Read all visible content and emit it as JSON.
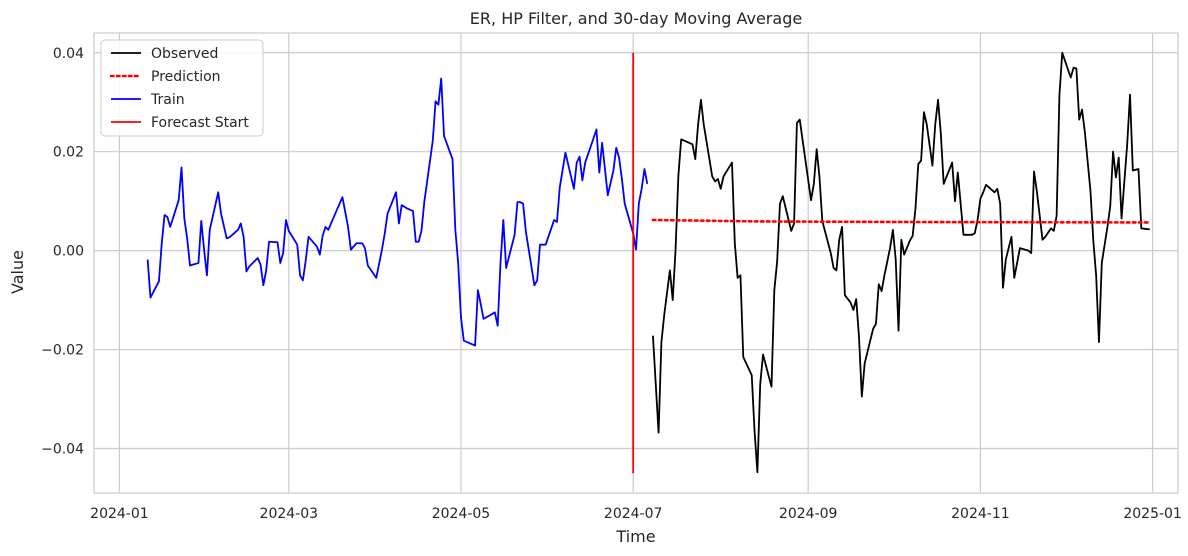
{
  "chart_data": {
    "type": "line",
    "title": "ER, HP Filter, and 30-day Moving Average",
    "xlabel": "Time",
    "ylabel": "Value",
    "x_type": "date",
    "xlim": [
      "2023-12-23",
      "2025-01-10"
    ],
    "ylim": [
      -0.049,
      0.044
    ],
    "x_ticks": [
      "2024-01-01",
      "2024-03-01",
      "2024-05-01",
      "2024-07-01",
      "2024-09-01",
      "2024-11-01",
      "2025-01-01"
    ],
    "x_tick_labels": [
      "2024-01",
      "2024-03",
      "2024-05",
      "2024-07",
      "2024-09",
      "2024-11",
      "2025-01"
    ],
    "y_ticks": [
      -0.04,
      -0.02,
      0.0,
      0.02,
      0.04
    ],
    "y_tick_labels": [
      "−0.04",
      "−0.02",
      "0.00",
      "0.02",
      "0.04"
    ],
    "grid": true,
    "legend_position": "top-left",
    "series": [
      {
        "name": "Train",
        "color": "#0000ff",
        "style": "solid",
        "points": [
          [
            "2024-01-11",
            -0.0018
          ],
          [
            "2024-01-12",
            -0.0095
          ],
          [
            "2024-01-15",
            -0.0062
          ],
          [
            "2024-01-16",
            0.0015
          ],
          [
            "2024-01-17",
            0.0072
          ],
          [
            "2024-01-18",
            0.0068
          ],
          [
            "2024-01-19",
            0.0048
          ],
          [
            "2024-01-22",
            0.0102
          ],
          [
            "2024-01-23",
            0.0168
          ],
          [
            "2024-01-24",
            0.0065
          ],
          [
            "2024-01-25",
            0.0025
          ],
          [
            "2024-01-26",
            -0.003
          ],
          [
            "2024-01-29",
            -0.0025
          ],
          [
            "2024-01-30",
            0.006
          ],
          [
            "2024-01-31",
            0.0002
          ],
          [
            "2024-02-01",
            -0.005
          ],
          [
            "2024-02-02",
            0.0042
          ],
          [
            "2024-02-05",
            0.0118
          ],
          [
            "2024-02-06",
            0.0075
          ],
          [
            "2024-02-07",
            0.005
          ],
          [
            "2024-02-08",
            0.0025
          ],
          [
            "2024-02-09",
            0.0027
          ],
          [
            "2024-02-12",
            0.0042
          ],
          [
            "2024-02-13",
            0.0055
          ],
          [
            "2024-02-14",
            0.0028
          ],
          [
            "2024-02-15",
            -0.0042
          ],
          [
            "2024-02-16",
            -0.0032
          ],
          [
            "2024-02-19",
            -0.0015
          ],
          [
            "2024-02-20",
            -0.0028
          ],
          [
            "2024-02-21",
            -0.007
          ],
          [
            "2024-02-22",
            -0.004
          ],
          [
            "2024-02-23",
            0.0018
          ],
          [
            "2024-02-26",
            0.0017
          ],
          [
            "2024-02-27",
            -0.0025
          ],
          [
            "2024-02-28",
            -0.0005
          ],
          [
            "2024-02-29",
            0.0062
          ],
          [
            "2024-03-01",
            0.004
          ],
          [
            "2024-03-04",
            0.0012
          ],
          [
            "2024-03-05",
            -0.005
          ],
          [
            "2024-03-06",
            -0.006
          ],
          [
            "2024-03-07",
            -0.002
          ],
          [
            "2024-03-08",
            0.0028
          ],
          [
            "2024-03-11",
            0.0008
          ],
          [
            "2024-03-12",
            -0.0008
          ],
          [
            "2024-03-13",
            0.003
          ],
          [
            "2024-03-14",
            0.0048
          ],
          [
            "2024-03-15",
            0.0042
          ],
          [
            "2024-03-18",
            0.0082
          ],
          [
            "2024-03-19",
            0.0095
          ],
          [
            "2024-03-20",
            0.0108
          ],
          [
            "2024-03-21",
            0.0078
          ],
          [
            "2024-03-22",
            0.0048
          ],
          [
            "2024-03-23",
            0.0002
          ],
          [
            "2024-03-25",
            0.0015
          ],
          [
            "2024-03-27",
            0.0015
          ],
          [
            "2024-03-28",
            0.0005
          ],
          [
            "2024-03-29",
            -0.003
          ],
          [
            "2024-04-01",
            -0.0055
          ],
          [
            "2024-04-03",
            0.0002
          ],
          [
            "2024-04-04",
            0.0035
          ],
          [
            "2024-04-05",
            0.0075
          ],
          [
            "2024-04-08",
            0.0118
          ],
          [
            "2024-04-09",
            0.0055
          ],
          [
            "2024-04-10",
            0.0092
          ],
          [
            "2024-04-12",
            0.0085
          ],
          [
            "2024-04-14",
            0.008
          ],
          [
            "2024-04-15",
            0.0018
          ],
          [
            "2024-04-16",
            0.0018
          ],
          [
            "2024-04-17",
            0.004
          ],
          [
            "2024-04-18",
            0.0098
          ],
          [
            "2024-04-21",
            0.0222
          ],
          [
            "2024-04-22",
            0.0302
          ],
          [
            "2024-04-23",
            0.0295
          ],
          [
            "2024-04-24",
            0.0348
          ],
          [
            "2024-04-25",
            0.0232
          ],
          [
            "2024-04-28",
            0.0185
          ],
          [
            "2024-04-29",
            0.0042
          ],
          [
            "2024-04-30",
            -0.0025
          ],
          [
            "2024-05-01",
            -0.0135
          ],
          [
            "2024-05-02",
            -0.0182
          ],
          [
            "2024-05-06",
            -0.0192
          ],
          [
            "2024-05-07",
            -0.008
          ],
          [
            "2024-05-08",
            -0.0108
          ],
          [
            "2024-05-09",
            -0.0138
          ],
          [
            "2024-05-13",
            -0.0125
          ],
          [
            "2024-05-14",
            -0.0152
          ],
          [
            "2024-05-15",
            -0.0025
          ],
          [
            "2024-05-16",
            0.0062
          ],
          [
            "2024-05-17",
            -0.0035
          ],
          [
            "2024-05-20",
            0.0032
          ],
          [
            "2024-05-21",
            0.0098
          ],
          [
            "2024-05-22",
            0.0098
          ],
          [
            "2024-05-23",
            0.0095
          ],
          [
            "2024-05-24",
            0.0038
          ],
          [
            "2024-05-27",
            -0.007
          ],
          [
            "2024-05-28",
            -0.006
          ],
          [
            "2024-05-29",
            0.0012
          ],
          [
            "2024-05-31",
            0.0012
          ],
          [
            "2024-06-03",
            0.0062
          ],
          [
            "2024-06-04",
            0.0058
          ],
          [
            "2024-06-05",
            0.0128
          ],
          [
            "2024-06-07",
            0.0198
          ],
          [
            "2024-06-10",
            0.0125
          ],
          [
            "2024-06-11",
            0.0178
          ],
          [
            "2024-06-12",
            0.019
          ],
          [
            "2024-06-13",
            0.0142
          ],
          [
            "2024-06-14",
            0.0178
          ],
          [
            "2024-06-17",
            0.0228
          ],
          [
            "2024-06-18",
            0.0245
          ],
          [
            "2024-06-19",
            0.0158
          ],
          [
            "2024-06-20",
            0.0218
          ],
          [
            "2024-06-21",
            0.0165
          ],
          [
            "2024-06-22",
            0.0112
          ],
          [
            "2024-06-24",
            0.0162
          ],
          [
            "2024-06-25",
            0.0208
          ],
          [
            "2024-06-26",
            0.0188
          ],
          [
            "2024-06-27",
            0.0145
          ],
          [
            "2024-06-28",
            0.0095
          ],
          [
            "2024-07-01",
            0.0035
          ],
          [
            "2024-07-02",
            0.0002
          ],
          [
            "2024-07-03",
            0.0095
          ],
          [
            "2024-07-04",
            0.0125
          ],
          [
            "2024-07-05",
            0.0165
          ],
          [
            "2024-07-06",
            0.0135
          ]
        ]
      },
      {
        "name": "Observed",
        "color": "#000000",
        "style": "solid",
        "points": [
          [
            "2024-07-08",
            -0.0172
          ],
          [
            "2024-07-10",
            -0.0368
          ],
          [
            "2024-07-11",
            -0.0185
          ],
          [
            "2024-07-12",
            -0.013
          ],
          [
            "2024-07-14",
            -0.004
          ],
          [
            "2024-07-15",
            -0.01
          ],
          [
            "2024-07-16",
            0.0
          ],
          [
            "2024-07-17",
            0.015
          ],
          [
            "2024-07-18",
            0.0225
          ],
          [
            "2024-07-22",
            0.0215
          ],
          [
            "2024-07-23",
            0.0185
          ],
          [
            "2024-07-24",
            0.0255
          ],
          [
            "2024-07-25",
            0.0305
          ],
          [
            "2024-07-26",
            0.0255
          ],
          [
            "2024-07-29",
            0.015
          ],
          [
            "2024-07-30",
            0.014
          ],
          [
            "2024-07-31",
            0.0145
          ],
          [
            "2024-08-01",
            0.0125
          ],
          [
            "2024-08-02",
            0.015
          ],
          [
            "2024-08-05",
            0.0178
          ],
          [
            "2024-08-06",
            0.0015
          ],
          [
            "2024-08-07",
            -0.0055
          ],
          [
            "2024-08-08",
            -0.005
          ],
          [
            "2024-08-09",
            -0.0215
          ],
          [
            "2024-08-12",
            -0.0252
          ],
          [
            "2024-08-13",
            -0.0365
          ],
          [
            "2024-08-14",
            -0.0448
          ],
          [
            "2024-08-15",
            -0.027
          ],
          [
            "2024-08-16",
            -0.021
          ],
          [
            "2024-08-19",
            -0.0275
          ],
          [
            "2024-08-20",
            -0.008
          ],
          [
            "2024-08-21",
            -0.0022
          ],
          [
            "2024-08-22",
            0.0095
          ],
          [
            "2024-08-23",
            0.011
          ],
          [
            "2024-08-26",
            0.004
          ],
          [
            "2024-08-27",
            0.0055
          ],
          [
            "2024-08-28",
            0.0258
          ],
          [
            "2024-08-29",
            0.0265
          ],
          [
            "2024-09-02",
            0.0102
          ],
          [
            "2024-09-03",
            0.0135
          ],
          [
            "2024-09-04",
            0.0205
          ],
          [
            "2024-09-05",
            0.0148
          ],
          [
            "2024-09-06",
            0.006
          ],
          [
            "2024-09-09",
            -0.0005
          ],
          [
            "2024-09-10",
            -0.0035
          ],
          [
            "2024-09-11",
            -0.004
          ],
          [
            "2024-09-12",
            0.0022
          ],
          [
            "2024-09-13",
            0.0048
          ],
          [
            "2024-09-14",
            -0.009
          ],
          [
            "2024-09-16",
            -0.0105
          ],
          [
            "2024-09-17",
            -0.012
          ],
          [
            "2024-09-18",
            -0.0098
          ],
          [
            "2024-09-19",
            -0.0175
          ],
          [
            "2024-09-20",
            -0.0295
          ],
          [
            "2024-09-21",
            -0.0228
          ],
          [
            "2024-09-24",
            -0.0158
          ],
          [
            "2024-09-25",
            -0.0148
          ],
          [
            "2024-09-26",
            -0.0068
          ],
          [
            "2024-09-27",
            -0.0082
          ],
          [
            "2024-09-28",
            -0.005
          ],
          [
            "2024-09-30",
            0.0005
          ],
          [
            "2024-10-01",
            0.0042
          ],
          [
            "2024-10-02",
            -0.0018
          ],
          [
            "2024-10-03",
            -0.0162
          ],
          [
            "2024-10-04",
            0.0022
          ],
          [
            "2024-10-05",
            -0.0008
          ],
          [
            "2024-10-07",
            0.002
          ],
          [
            "2024-10-08",
            0.003
          ],
          [
            "2024-10-09",
            0.0085
          ],
          [
            "2024-10-10",
            0.0175
          ],
          [
            "2024-10-11",
            0.0182
          ],
          [
            "2024-10-12",
            0.028
          ],
          [
            "2024-10-13",
            0.0255
          ],
          [
            "2024-10-15",
            0.0172
          ],
          [
            "2024-10-16",
            0.0255
          ],
          [
            "2024-10-17",
            0.0305
          ],
          [
            "2024-10-18",
            0.0235
          ],
          [
            "2024-10-19",
            0.0135
          ],
          [
            "2024-10-22",
            0.0178
          ],
          [
            "2024-10-23",
            0.01
          ],
          [
            "2024-10-24",
            0.0158
          ],
          [
            "2024-10-26",
            0.0032
          ],
          [
            "2024-10-29",
            0.0032
          ],
          [
            "2024-10-30",
            0.0035
          ],
          [
            "2024-10-31",
            0.0062
          ],
          [
            "2024-11-01",
            0.0105
          ],
          [
            "2024-11-02",
            0.0118
          ],
          [
            "2024-11-03",
            0.0133
          ],
          [
            "2024-11-06",
            0.0118
          ],
          [
            "2024-11-07",
            0.0125
          ],
          [
            "2024-11-08",
            0.0095
          ],
          [
            "2024-11-09",
            -0.0075
          ],
          [
            "2024-11-10",
            -0.0018
          ],
          [
            "2024-11-12",
            0.0028
          ],
          [
            "2024-11-13",
            -0.0055
          ],
          [
            "2024-11-15",
            0.0005
          ],
          [
            "2024-11-18",
            0.0
          ],
          [
            "2024-11-19",
            -0.0005
          ],
          [
            "2024-11-20",
            0.016
          ],
          [
            "2024-11-21",
            0.012
          ],
          [
            "2024-11-23",
            0.0022
          ],
          [
            "2024-11-24",
            0.0028
          ],
          [
            "2024-11-26",
            0.0045
          ],
          [
            "2024-11-27",
            0.004
          ],
          [
            "2024-11-28",
            0.007
          ],
          [
            "2024-11-29",
            0.0315
          ],
          [
            "2024-11-30",
            0.04
          ],
          [
            "2024-12-03",
            0.035
          ],
          [
            "2024-12-04",
            0.037
          ],
          [
            "2024-12-05",
            0.0368
          ],
          [
            "2024-12-06",
            0.0265
          ],
          [
            "2024-12-07",
            0.0285
          ],
          [
            "2024-12-08",
            0.024
          ],
          [
            "2024-12-10",
            0.012
          ],
          [
            "2024-12-11",
            0.002
          ],
          [
            "2024-12-12",
            -0.005
          ],
          [
            "2024-12-13",
            -0.0185
          ],
          [
            "2024-12-14",
            -0.0025
          ],
          [
            "2024-12-16",
            0.0048
          ],
          [
            "2024-12-17",
            0.009
          ],
          [
            "2024-12-18",
            0.02
          ],
          [
            "2024-12-19",
            0.0148
          ],
          [
            "2024-12-20",
            0.0188
          ],
          [
            "2024-12-21",
            0.0065
          ],
          [
            "2024-12-23",
            0.0215
          ],
          [
            "2024-12-24",
            0.0315
          ],
          [
            "2024-12-25",
            0.0162
          ],
          [
            "2024-12-27",
            0.0165
          ],
          [
            "2024-12-28",
            0.0045
          ],
          [
            "2024-12-31",
            0.0043
          ]
        ]
      },
      {
        "name": "Prediction",
        "color": "#ff0000",
        "style": "dotted",
        "points": [
          [
            "2024-07-08",
            0.0062
          ],
          [
            "2024-08-15",
            0.0059
          ],
          [
            "2024-10-01",
            0.0058
          ],
          [
            "2024-12-31",
            0.0057
          ]
        ]
      },
      {
        "name": "Forecast Start",
        "color": "#ff0000",
        "style": "solid",
        "points": [
          [
            "2024-07-01",
            -0.045
          ],
          [
            "2024-07-01",
            0.04
          ]
        ]
      }
    ],
    "legend": [
      {
        "label": "Observed",
        "color": "#000000",
        "style": "solid"
      },
      {
        "label": "Prediction",
        "color": "#ff0000",
        "style": "dotted"
      },
      {
        "label": "Train",
        "color": "#0000ff",
        "style": "solid"
      },
      {
        "label": "Forecast Start",
        "color": "#ff0000",
        "style": "solid"
      }
    ]
  }
}
